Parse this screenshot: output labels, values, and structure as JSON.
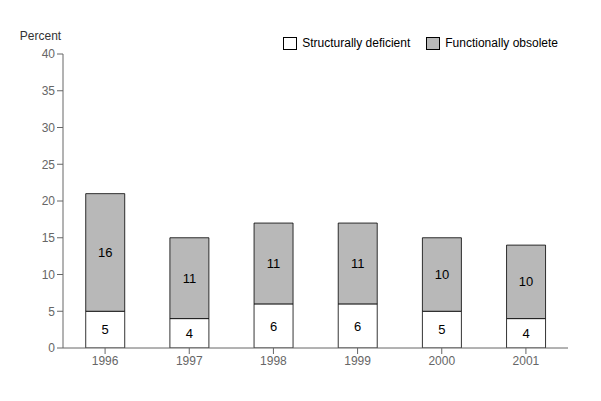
{
  "chart_data": {
    "type": "bar",
    "stacked": true,
    "y_label": "Percent",
    "categories": [
      "1996",
      "1997",
      "1998",
      "1999",
      "2000",
      "2001"
    ],
    "series": [
      {
        "name": "Structurally deficient",
        "color": "#ffffff",
        "values": [
          5,
          4,
          6,
          6,
          5,
          4
        ]
      },
      {
        "name": "Functionally obsolete",
        "color": "#b8b8b8",
        "values": [
          16,
          11,
          11,
          11,
          10,
          10
        ]
      }
    ],
    "ylim": [
      0,
      40
    ],
    "yticks": [
      0,
      5,
      10,
      15,
      20,
      25,
      30,
      35,
      40
    ],
    "data_labels": true,
    "legend": "upper right",
    "grid": false
  }
}
